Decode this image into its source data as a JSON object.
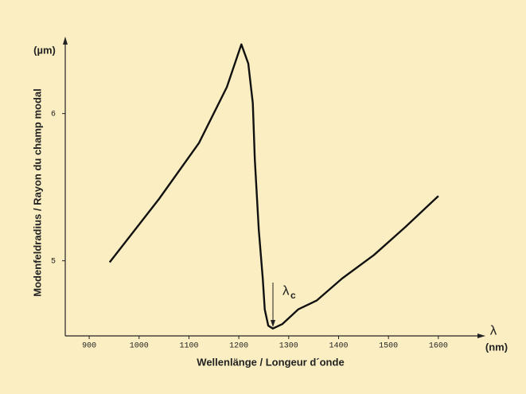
{
  "chart_data": {
    "type": "line",
    "x_label": "Wellenlänge / Longeur d´onde",
    "y_label": "Modenfeldradius / Rayon du champ modal",
    "x_unit": "(nm)",
    "y_unit": "(µm)",
    "x_symbol": "λ",
    "annotation": {
      "text": "λ",
      "subscript": "c"
    },
    "x": [
      941,
      1040,
      1120,
      1176,
      1205,
      1219,
      1228,
      1232,
      1240,
      1248,
      1252,
      1259,
      1268,
      1287,
      1319,
      1356,
      1407,
      1471,
      1534,
      1600
    ],
    "y": [
      4.99,
      5.42,
      5.8,
      6.18,
      6.47,
      6.34,
      6.07,
      5.69,
      5.21,
      4.88,
      4.67,
      4.56,
      4.54,
      4.57,
      4.67,
      4.73,
      4.88,
      5.04,
      5.23,
      5.44
    ],
    "color": "#111111",
    "xlim": [
      852,
      1680
    ],
    "xticks": [
      900,
      1000,
      1100,
      1200,
      1300,
      1400,
      1500,
      1600
    ],
    "ylim": [
      4.49,
      6.49
    ],
    "yticks": [
      5,
      6
    ]
  }
}
